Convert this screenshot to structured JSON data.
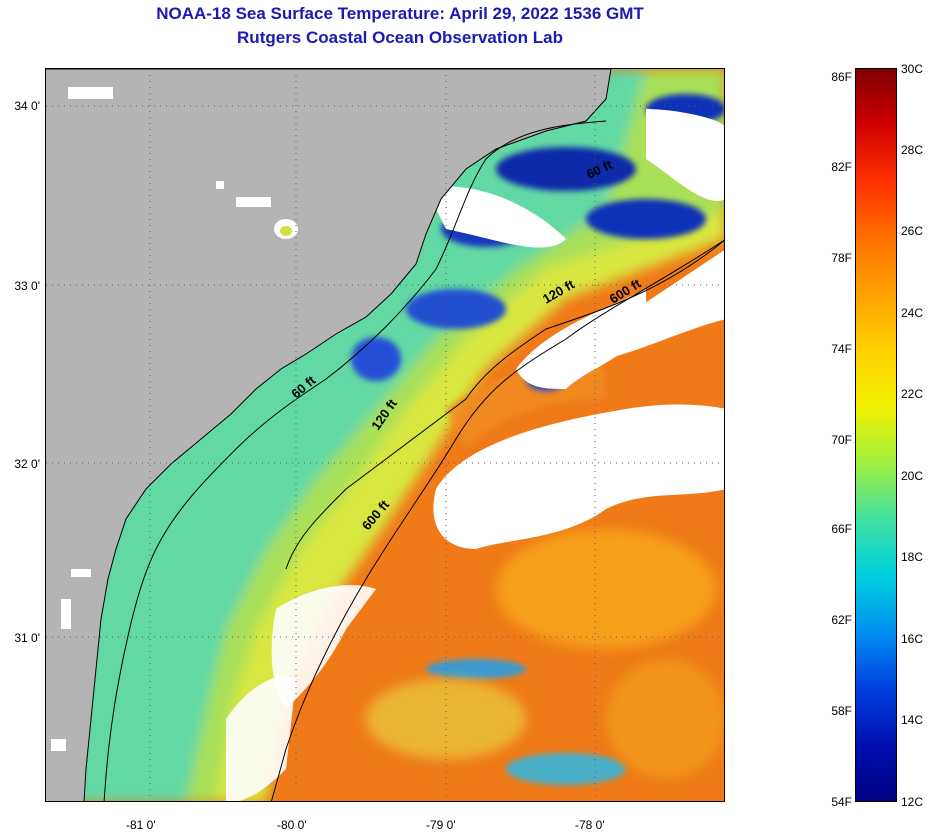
{
  "header": {
    "title": "NOAA-18 Sea Surface Temperature:  April 29, 2022 1536 GMT",
    "subtitle": "Rutgers Coastal Ocean Observation Lab"
  },
  "map": {
    "lat_labels": [
      "34 0'",
      "33 0'",
      "32 0'",
      "31 0'"
    ],
    "lon_labels": [
      "-81 0'",
      "-80 0'",
      "-79 0'",
      "-78 0'"
    ],
    "depth_labels": [
      "60 ft",
      "120 ft",
      "600 ft",
      "600 ft",
      "120 ft",
      "60 ft"
    ],
    "land_color": "#b4b4b4",
    "cloud_color": "#ffffff"
  },
  "colorbar": {
    "fahrenheit": [
      "86F",
      "82F",
      "78F",
      "74F",
      "70F",
      "66F",
      "62F",
      "58F",
      "54F"
    ],
    "celsius": [
      "30C",
      "28C",
      "26C",
      "24C",
      "22C",
      "20C",
      "18C",
      "16C",
      "14C",
      "12C"
    ],
    "colors": [
      "#800000",
      "#d00000",
      "#ff3000",
      "#ff7000",
      "#ffa000",
      "#ffd000",
      "#f0f000",
      "#a0f040",
      "#40e0a0",
      "#00d0e0",
      "#0090f0",
      "#0040e0",
      "#0010b0",
      "#000080"
    ]
  }
}
